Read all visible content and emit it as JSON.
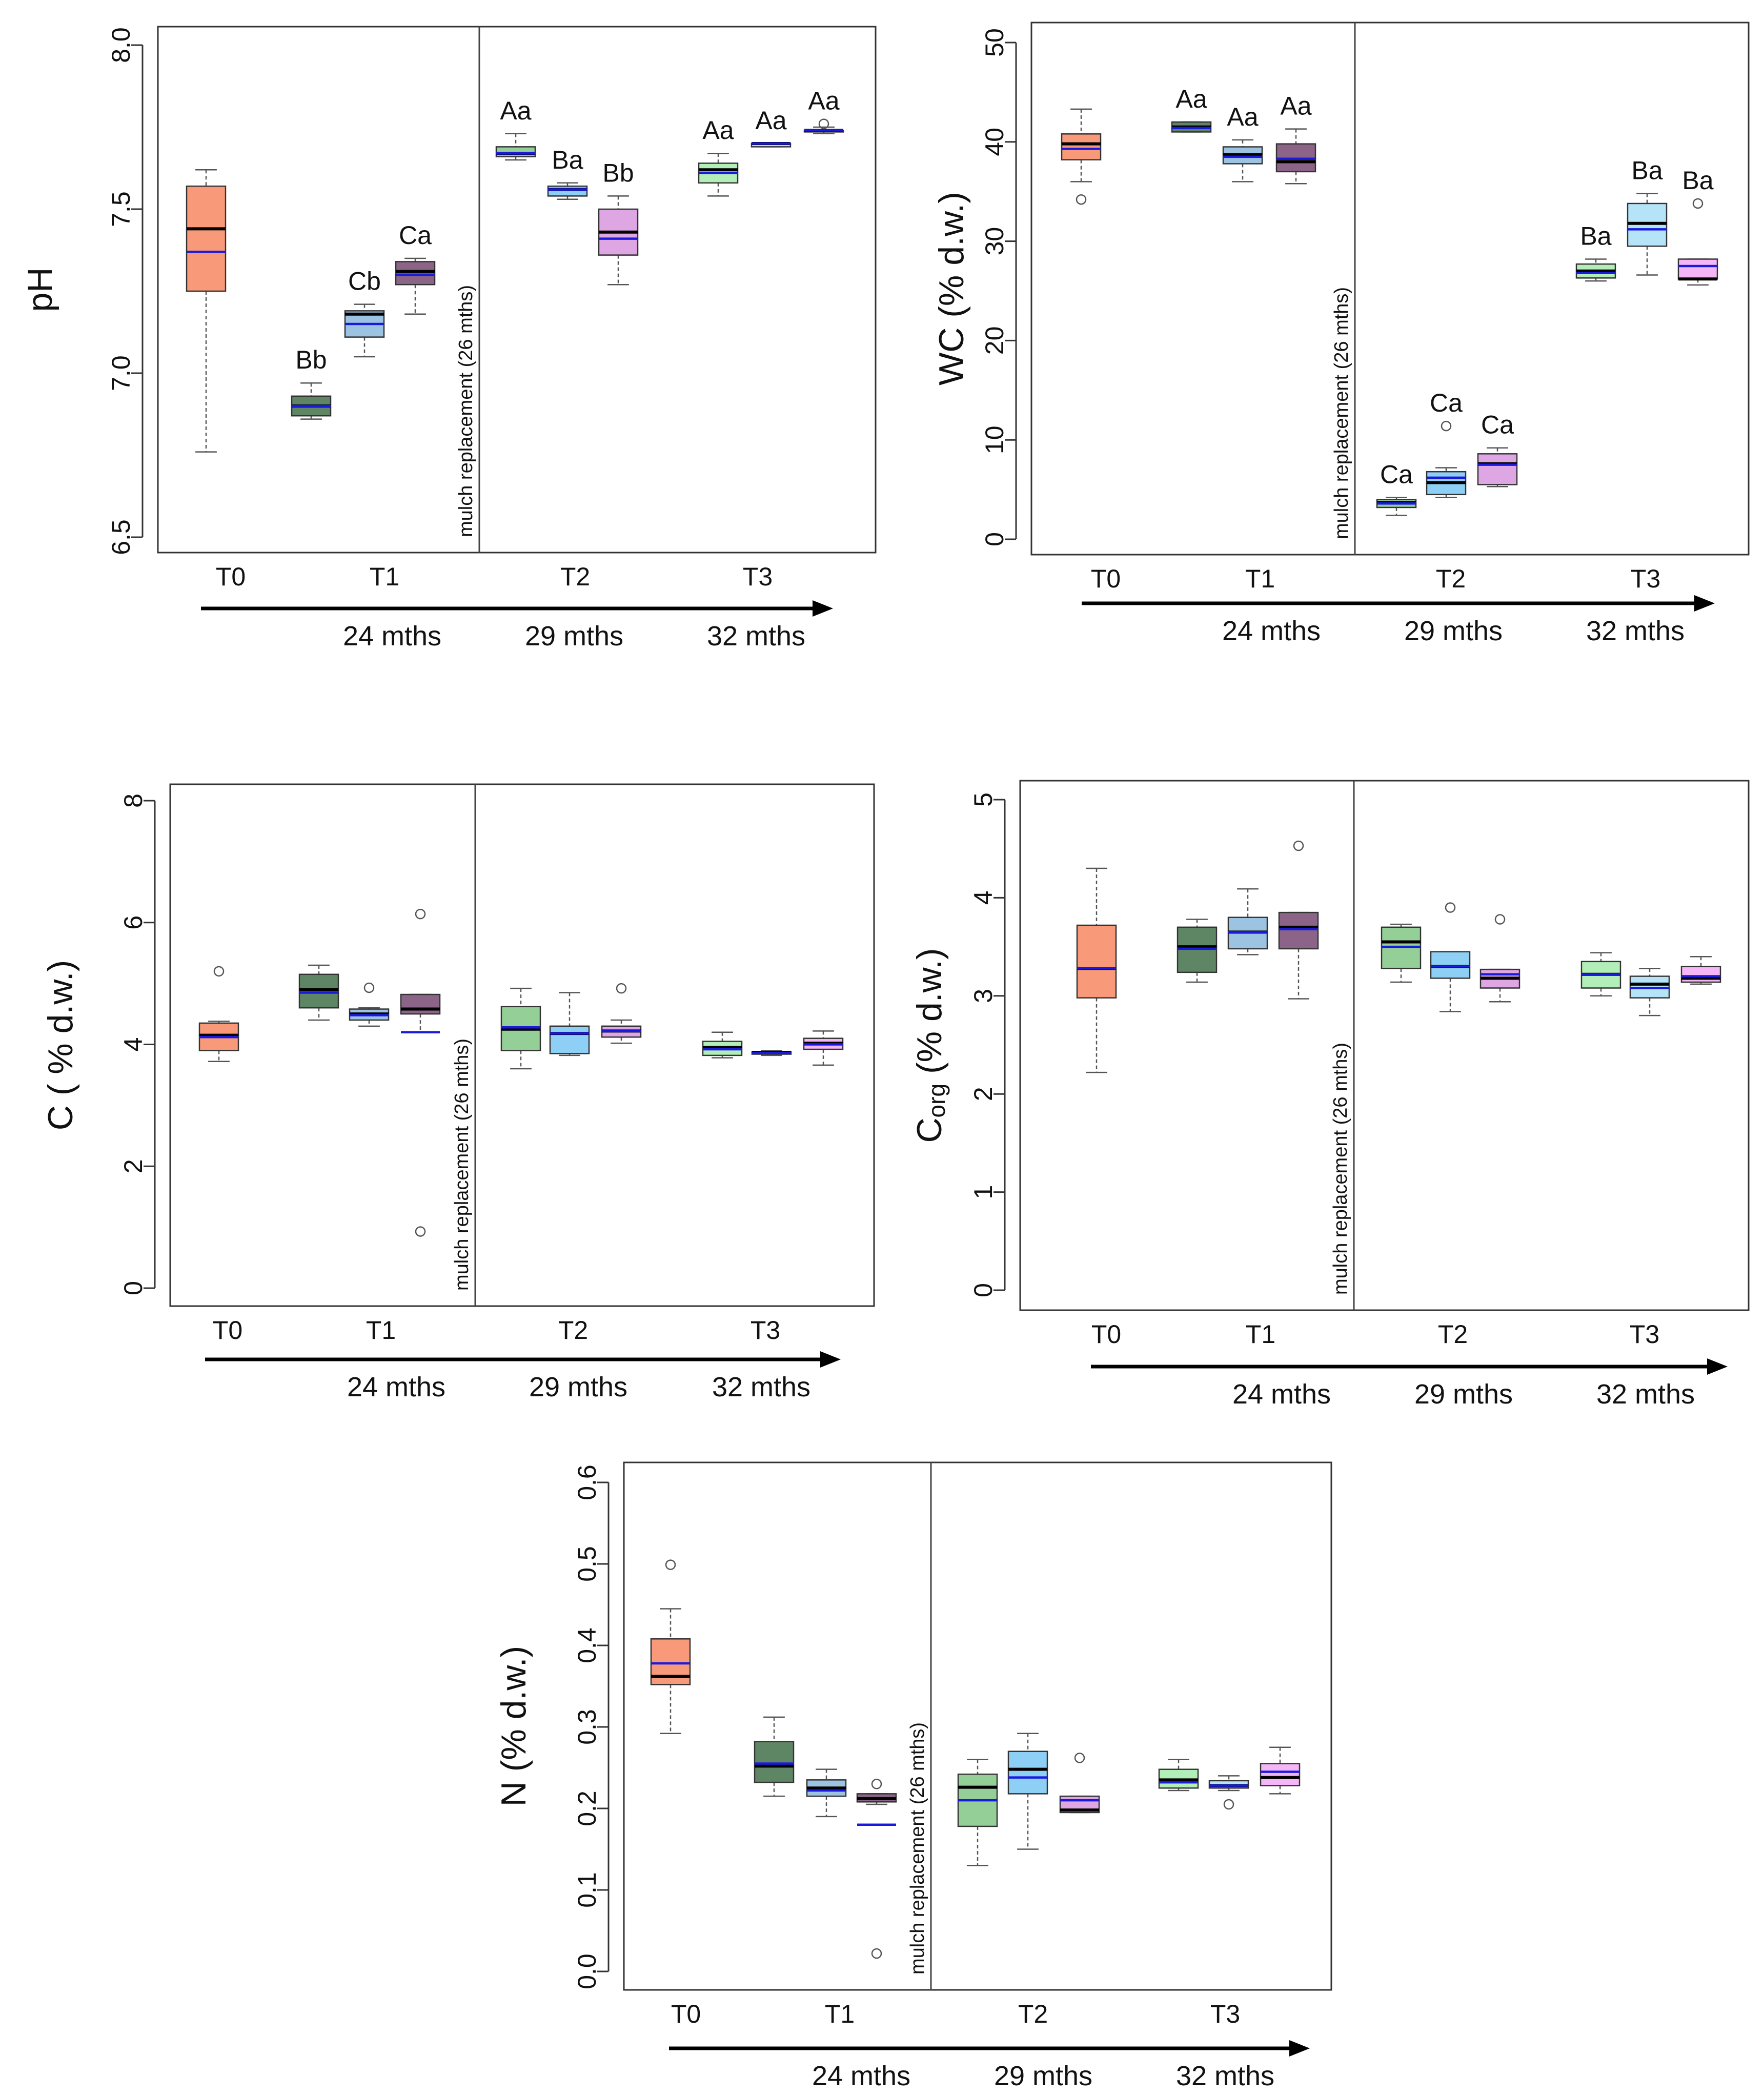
{
  "colors": {
    "T0": "#f8997a",
    "T1": [
      "#5f8664",
      "#9cc3e2",
      "#8b6488"
    ],
    "T2": [
      "#94cf98",
      "#8ed0f5",
      "#dfa6e4"
    ],
    "T3": [
      "#b2eeb8",
      "#b5e4f8",
      "#f4b6f6"
    ],
    "median": "#000000",
    "mean": "#1a1adf"
  },
  "common": {
    "group_labels": [
      "T0",
      "T1",
      "T2",
      "T3"
    ],
    "time_labels": [
      "24 mths",
      "29 mths",
      "32 mths"
    ],
    "separator_label": "mulch replacement (26 mths)"
  },
  "chart_data": [
    {
      "id": "ph",
      "type": "box",
      "ylabel": "pH",
      "ylim": [
        6.5,
        8.0
      ],
      "yticks": [
        "6.5",
        "7.0",
        "7.5",
        "8.0"
      ],
      "group_labels": [
        "T0",
        "T1",
        "T2",
        "T3"
      ],
      "time_labels": [
        "24 mths",
        "29 mths",
        "32 mths"
      ],
      "separator_label": "mulch replacement (26 mths)",
      "boxes": [
        {
          "group": "T0",
          "min": 6.76,
          "q1": 7.25,
          "median": 7.44,
          "q3": 7.57,
          "max": 7.62,
          "mean": 7.37,
          "outliers": [],
          "letter": ""
        },
        {
          "group": "T1",
          "min": 6.86,
          "q1": 6.87,
          "median": 6.9,
          "q3": 6.93,
          "max": 6.97,
          "mean": 6.9,
          "outliers": [],
          "letter": "Bb"
        },
        {
          "group": "T1",
          "min": 7.05,
          "q1": 7.11,
          "median": 7.18,
          "q3": 7.19,
          "max": 7.21,
          "mean": 7.15,
          "outliers": [],
          "letter": "Cb"
        },
        {
          "group": "T1",
          "min": 7.18,
          "q1": 7.27,
          "median": 7.31,
          "q3": 7.34,
          "max": 7.35,
          "mean": 7.3,
          "outliers": [],
          "letter": "Ca"
        },
        {
          "group": "T2",
          "min": 7.65,
          "q1": 7.66,
          "median": 7.67,
          "q3": 7.69,
          "max": 7.73,
          "mean": 7.67,
          "outliers": [],
          "letter": "Aa"
        },
        {
          "group": "T2",
          "min": 7.53,
          "q1": 7.54,
          "median": 7.56,
          "q3": 7.57,
          "max": 7.58,
          "mean": 7.56,
          "outliers": [],
          "letter": "Ba"
        },
        {
          "group": "T2",
          "min": 7.27,
          "q1": 7.36,
          "median": 7.43,
          "q3": 7.5,
          "max": 7.54,
          "mean": 7.41,
          "outliers": [],
          "letter": "Bb"
        },
        {
          "group": "T3",
          "min": 7.54,
          "q1": 7.58,
          "median": 7.62,
          "q3": 7.64,
          "max": 7.67,
          "mean": 7.61,
          "outliers": [],
          "letter": "Aa"
        },
        {
          "group": "T3",
          "min": 7.69,
          "q1": 7.69,
          "median": 7.7,
          "q3": 7.7,
          "max": 7.7,
          "mean": 7.7,
          "outliers": [],
          "letter": "Aa"
        },
        {
          "group": "T3",
          "min": 7.73,
          "q1": 7.74,
          "median": 7.74,
          "q3": 7.74,
          "max": 7.75,
          "mean": 7.74,
          "outliers": [
            7.76
          ],
          "letter": "Aa"
        }
      ]
    },
    {
      "id": "wc",
      "type": "box",
      "ylabel": "WC (% d.w.)",
      "ylim": [
        0,
        50
      ],
      "yticks": [
        "0",
        "10",
        "20",
        "30",
        "40",
        "50"
      ],
      "group_labels": [
        "T0",
        "T1",
        "T2",
        "T3"
      ],
      "time_labels": [
        "24 mths",
        "29 mths",
        "32 mths"
      ],
      "separator_label": "mulch replacement (26 mths)",
      "boxes": [
        {
          "group": "T0",
          "min": 36.0,
          "q1": 38.2,
          "median": 39.8,
          "q3": 40.8,
          "max": 43.3,
          "mean": 39.3,
          "outliers": [
            34.2
          ],
          "letter": ""
        },
        {
          "group": "T1",
          "min": 41.0,
          "q1": 41.0,
          "median": 41.5,
          "q3": 42.0,
          "max": 42.0,
          "mean": 41.4,
          "outliers": [],
          "letter": "Aa"
        },
        {
          "group": "T1",
          "min": 36.0,
          "q1": 37.8,
          "median": 38.7,
          "q3": 39.5,
          "max": 40.2,
          "mean": 38.5,
          "outliers": [],
          "letter": "Aa"
        },
        {
          "group": "T1",
          "min": 35.8,
          "q1": 37.0,
          "median": 38.0,
          "q3": 39.8,
          "max": 41.3,
          "mean": 38.3,
          "outliers": [],
          "letter": "Aa"
        },
        {
          "group": "T2",
          "min": 2.4,
          "q1": 3.2,
          "median": 3.7,
          "q3": 4.0,
          "max": 4.2,
          "mean": 3.6,
          "outliers": [],
          "letter": "Ca"
        },
        {
          "group": "T2",
          "min": 4.2,
          "q1": 4.5,
          "median": 5.7,
          "q3": 6.8,
          "max": 7.2,
          "mean": 6.2,
          "outliers": [
            11.4
          ],
          "letter": "Ca"
        },
        {
          "group": "T2",
          "min": 5.3,
          "q1": 5.5,
          "median": 7.6,
          "q3": 8.6,
          "max": 9.2,
          "mean": 7.5,
          "outliers": [],
          "letter": "Ca"
        },
        {
          "group": "T3",
          "min": 26.0,
          "q1": 26.3,
          "median": 27.0,
          "q3": 27.7,
          "max": 28.2,
          "mean": 26.8,
          "outliers": [],
          "letter": "Ba"
        },
        {
          "group": "T3",
          "min": 26.6,
          "q1": 29.5,
          "median": 31.8,
          "q3": 33.8,
          "max": 34.8,
          "mean": 31.2,
          "outliers": [],
          "letter": "Ba"
        },
        {
          "group": "T3",
          "min": 25.6,
          "q1": 26.2,
          "median": 26.2,
          "q3": 28.2,
          "max": 28.2,
          "mean": 27.5,
          "outliers": [
            33.8
          ],
          "letter": "Ba"
        }
      ]
    },
    {
      "id": "c",
      "type": "box",
      "ylabel": "C ( % d.w.)",
      "ylim": [
        0,
        8
      ],
      "yticks": [
        "0",
        "2",
        "4",
        "6",
        "8"
      ],
      "group_labels": [
        "T0",
        "T1",
        "T2",
        "T3"
      ],
      "time_labels": [
        "24 mths",
        "29 mths",
        "32 mths"
      ],
      "separator_label": "mulch replacement (26 mths)",
      "boxes": [
        {
          "group": "T0",
          "min": 3.72,
          "q1": 3.9,
          "median": 4.15,
          "q3": 4.35,
          "max": 4.38,
          "mean": 4.12,
          "outliers": [
            5.2
          ],
          "letter": ""
        },
        {
          "group": "T1",
          "min": 4.4,
          "q1": 4.6,
          "median": 4.9,
          "q3": 5.15,
          "max": 5.3,
          "mean": 4.85,
          "outliers": [],
          "letter": ""
        },
        {
          "group": "T1",
          "min": 4.3,
          "q1": 4.4,
          "median": 4.5,
          "q3": 4.58,
          "max": 4.6,
          "mean": 4.48,
          "outliers": [
            4.93
          ],
          "letter": ""
        },
        {
          "group": "T1",
          "min": 4.2,
          "q1": 4.5,
          "median": 4.58,
          "q3": 4.82,
          "max": 4.82,
          "mean": 4.2,
          "outliers": [
            6.14,
            0.93
          ],
          "letter": ""
        },
        {
          "group": "T2",
          "min": 3.6,
          "q1": 3.9,
          "median": 4.25,
          "q3": 4.62,
          "max": 4.92,
          "mean": 4.28,
          "outliers": [],
          "letter": ""
        },
        {
          "group": "T2",
          "min": 3.82,
          "q1": 3.85,
          "median": 4.18,
          "q3": 4.3,
          "max": 4.85,
          "mean": 4.18,
          "outliers": [],
          "letter": ""
        },
        {
          "group": "T2",
          "min": 4.02,
          "q1": 4.12,
          "median": 4.22,
          "q3": 4.3,
          "max": 4.4,
          "mean": 4.22,
          "outliers": [
            4.92
          ],
          "letter": ""
        },
        {
          "group": "T3",
          "min": 3.78,
          "q1": 3.82,
          "median": 3.95,
          "q3": 4.05,
          "max": 4.2,
          "mean": 3.92,
          "outliers": [],
          "letter": ""
        },
        {
          "group": "T3",
          "min": 3.82,
          "q1": 3.84,
          "median": 3.87,
          "q3": 3.88,
          "max": 3.9,
          "mean": 3.86,
          "outliers": [],
          "letter": ""
        },
        {
          "group": "T3",
          "min": 3.66,
          "q1": 3.92,
          "median": 4.02,
          "q3": 4.1,
          "max": 4.22,
          "mean": 4.0,
          "outliers": [],
          "letter": ""
        }
      ]
    },
    {
      "id": "corg",
      "type": "box",
      "ylabel": "C",
      "ylabel_sub": "org",
      "ylabel_suffix": " (% d.w.)",
      "ylim": [
        0,
        5
      ],
      "yticks": [
        "0",
        "1",
        "2",
        "3",
        "4",
        "5"
      ],
      "group_labels": [
        "T0",
        "T1",
        "T2",
        "T3"
      ],
      "time_labels": [
        "24 mths",
        "29 mths",
        "32 mths"
      ],
      "separator_label": "mulch replacement (26 mths)",
      "boxes": [
        {
          "group": "T0",
          "min": 2.22,
          "q1": 2.98,
          "median": 3.28,
          "q3": 3.72,
          "max": 4.3,
          "mean": 3.28,
          "outliers": [],
          "letter": ""
        },
        {
          "group": "T1",
          "min": 3.14,
          "q1": 3.24,
          "median": 3.5,
          "q3": 3.7,
          "max": 3.78,
          "mean": 3.48,
          "outliers": [],
          "letter": ""
        },
        {
          "group": "T1",
          "min": 3.42,
          "q1": 3.48,
          "median": 3.65,
          "q3": 3.8,
          "max": 4.09,
          "mean": 3.65,
          "outliers": [],
          "letter": ""
        },
        {
          "group": "T1",
          "min": 2.97,
          "q1": 3.48,
          "median": 3.7,
          "q3": 3.85,
          "max": 3.85,
          "mean": 3.68,
          "outliers": [
            4.53
          ],
          "letter": ""
        },
        {
          "group": "T2",
          "min": 3.14,
          "q1": 3.28,
          "median": 3.55,
          "q3": 3.7,
          "max": 3.73,
          "mean": 3.5,
          "outliers": [],
          "letter": ""
        },
        {
          "group": "T2",
          "min": 2.84,
          "q1": 3.18,
          "median": 3.3,
          "q3": 3.45,
          "max": 3.45,
          "mean": 3.3,
          "outliers": [
            3.9
          ],
          "letter": ""
        },
        {
          "group": "T2",
          "min": 2.94,
          "q1": 3.08,
          "median": 3.18,
          "q3": 3.27,
          "max": 3.27,
          "mean": 3.22,
          "outliers": [
            3.78
          ],
          "letter": ""
        },
        {
          "group": "T3",
          "min": 3.0,
          "q1": 3.08,
          "median": 3.22,
          "q3": 3.35,
          "max": 3.44,
          "mean": 3.22,
          "outliers": [],
          "letter": ""
        },
        {
          "group": "T3",
          "min": 2.8,
          "q1": 2.98,
          "median": 3.12,
          "q3": 3.2,
          "max": 3.28,
          "mean": 3.08,
          "outliers": [],
          "letter": ""
        },
        {
          "group": "T3",
          "min": 3.12,
          "q1": 3.14,
          "median": 3.18,
          "q3": 3.3,
          "max": 3.4,
          "mean": 3.2,
          "outliers": [],
          "letter": ""
        }
      ]
    },
    {
      "id": "n",
      "type": "box",
      "ylabel": "N (% d.w.)",
      "ylim": [
        0,
        0.6
      ],
      "yticks": [
        "0.0",
        "0.1",
        "0.2",
        "0.3",
        "0.4",
        "0.5",
        "0.6"
      ],
      "group_labels": [
        "T0",
        "T1",
        "T2",
        "T3"
      ],
      "time_labels": [
        "24 mths",
        "29 mths",
        "32 mths"
      ],
      "separator_label": "mulch replacement (26 mths)",
      "boxes": [
        {
          "group": "T0",
          "min": 0.292,
          "q1": 0.352,
          "median": 0.362,
          "q3": 0.408,
          "max": 0.445,
          "mean": 0.378,
          "outliers": [
            0.499
          ],
          "letter": ""
        },
        {
          "group": "T1",
          "min": 0.215,
          "q1": 0.232,
          "median": 0.252,
          "q3": 0.282,
          "max": 0.312,
          "mean": 0.255,
          "outliers": [],
          "letter": ""
        },
        {
          "group": "T1",
          "min": 0.19,
          "q1": 0.215,
          "median": 0.225,
          "q3": 0.235,
          "max": 0.248,
          "mean": 0.222,
          "outliers": [],
          "letter": ""
        },
        {
          "group": "T1",
          "min": 0.205,
          "q1": 0.208,
          "median": 0.212,
          "q3": 0.218,
          "max": 0.218,
          "mean": 0.18,
          "outliers": [
            0.23,
            0.022
          ],
          "letter": ""
        },
        {
          "group": "T2",
          "min": 0.13,
          "q1": 0.178,
          "median": 0.226,
          "q3": 0.242,
          "max": 0.26,
          "mean": 0.21,
          "outliers": [],
          "letter": ""
        },
        {
          "group": "T2",
          "min": 0.15,
          "q1": 0.218,
          "median": 0.248,
          "q3": 0.27,
          "max": 0.292,
          "mean": 0.238,
          "outliers": [],
          "letter": ""
        },
        {
          "group": "T2",
          "min": 0.195,
          "q1": 0.195,
          "median": 0.198,
          "q3": 0.215,
          "max": 0.215,
          "mean": 0.21,
          "outliers": [
            0.262
          ],
          "letter": ""
        },
        {
          "group": "T3",
          "min": 0.222,
          "q1": 0.225,
          "median": 0.235,
          "q3": 0.248,
          "max": 0.26,
          "mean": 0.232,
          "outliers": [],
          "letter": ""
        },
        {
          "group": "T3",
          "min": 0.222,
          "q1": 0.225,
          "median": 0.228,
          "q3": 0.234,
          "max": 0.24,
          "mean": 0.228,
          "outliers": [
            0.205
          ],
          "letter": ""
        },
        {
          "group": "T3",
          "min": 0.218,
          "q1": 0.228,
          "median": 0.238,
          "q3": 0.255,
          "max": 0.275,
          "mean": 0.245,
          "outliers": [],
          "letter": ""
        }
      ]
    }
  ]
}
